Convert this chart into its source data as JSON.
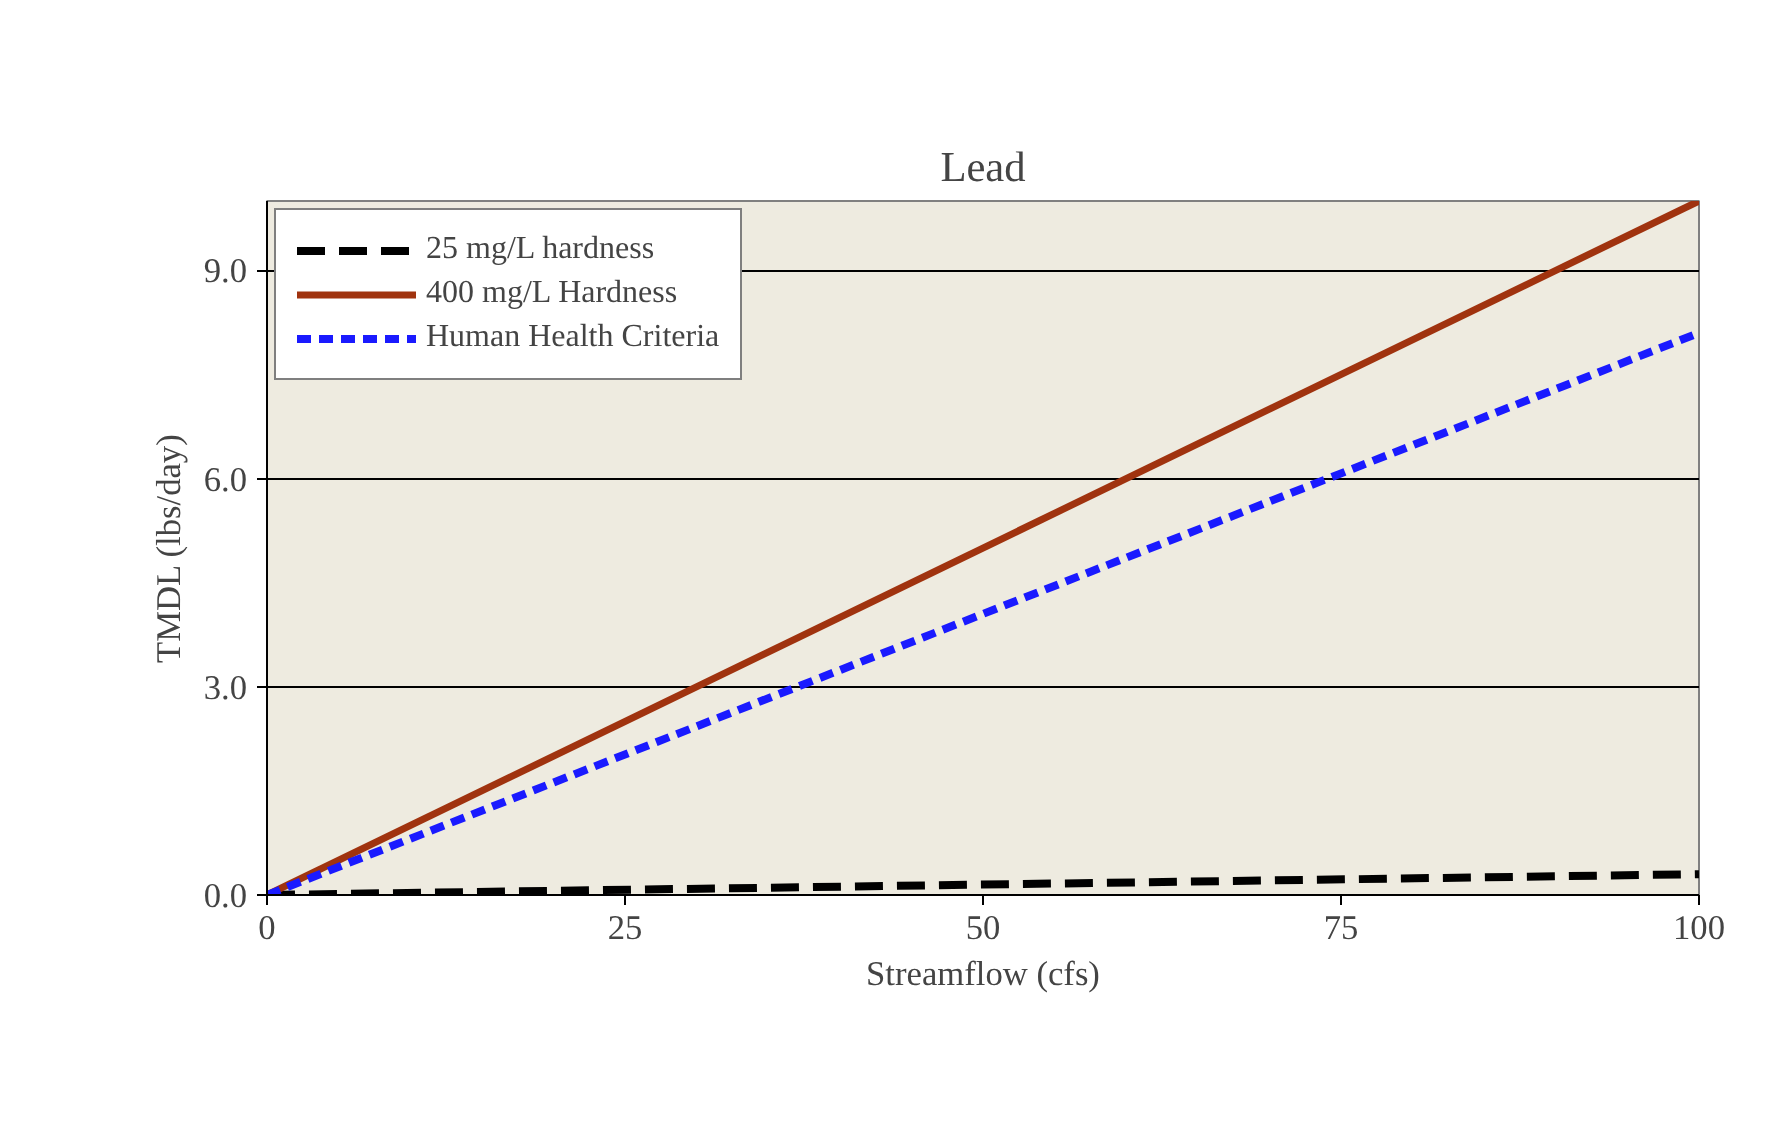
{
  "chart_data": {
    "type": "line",
    "title": "Lead",
    "xlabel": "Streamflow (cfs)",
    "ylabel": "TMDL (lbs/day)",
    "x": [
      0,
      100
    ],
    "series": [
      {
        "name": "25 mg/L hardness",
        "color": "#000000",
        "values": [
          0,
          0.3
        ],
        "line_style": "dashed"
      },
      {
        "name": "400 mg/L Hardness",
        "color": "#a0330f",
        "values": [
          0,
          10.0
        ],
        "line_style": "solid"
      },
      {
        "name": "Human Health Criteria",
        "color": "#1a1aff",
        "values": [
          0,
          8.1
        ],
        "line_style": "dotted"
      }
    ],
    "xlim": [
      0,
      100
    ],
    "ylim": [
      0,
      10
    ],
    "xticks": [
      0,
      25,
      50,
      75,
      100
    ],
    "yticks": [
      {
        "value": 0,
        "label": "0.0"
      },
      {
        "value": 3,
        "label": "3.0"
      },
      {
        "value": 6,
        "label": "6.0"
      },
      {
        "value": 9,
        "label": "9.0"
      }
    ],
    "grid": "y",
    "legend": "top left",
    "marker": "none"
  }
}
